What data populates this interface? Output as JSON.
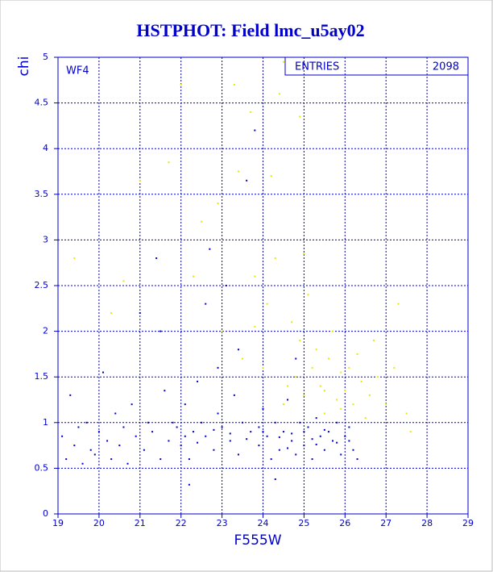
{
  "chart_data": {
    "type": "scatter",
    "title": "HSTPHOT: Field lmc_u5ay02",
    "x_label": "F555W",
    "y_label": "chi",
    "annotation": "WF4",
    "stats_label": "ENTRIES",
    "stats_value": "2098",
    "xlim": [
      19,
      29
    ],
    "ylim": [
      0,
      5
    ],
    "xticks": [
      19,
      20,
      21,
      22,
      23,
      24,
      25,
      26,
      27,
      28,
      29
    ],
    "yticks": [
      0,
      0.5,
      1,
      1.5,
      2,
      2.5,
      3,
      3.5,
      4,
      4.5,
      5
    ],
    "grid": true,
    "series": [
      {
        "color": "#0000cc",
        "x": [
          19.1,
          19.2,
          19.3,
          19.4,
          19.5,
          19.6,
          19.7,
          19.8,
          19.9,
          20.0,
          20.1,
          20.2,
          20.3,
          20.4,
          20.5,
          20.6,
          20.7,
          20.8,
          20.9,
          21.0,
          21.1,
          21.2,
          21.3,
          21.4,
          21.5,
          21.6,
          21.7,
          21.8,
          21.9,
          22.0,
          22.1,
          22.2,
          22.3,
          22.4,
          22.5,
          22.6,
          22.7,
          22.8,
          22.9,
          23.0,
          23.1,
          23.2,
          23.3,
          23.4,
          23.5,
          23.6,
          23.7,
          23.8,
          23.9,
          24.0,
          24.1,
          24.2,
          24.3,
          24.4,
          24.5,
          24.6,
          24.7,
          24.8,
          24.9,
          25.0,
          25.1,
          25.2,
          25.3,
          25.4,
          25.5,
          25.6,
          25.7,
          25.8,
          25.9,
          26.0,
          26.1,
          26.2,
          26.3,
          22.2,
          24.3,
          23.4,
          22.9,
          24.8,
          21.5,
          22.6,
          22.1,
          22.4,
          22.8,
          23.2,
          23.6,
          24.0,
          24.4,
          24.7,
          25.2,
          25.5,
          25.8,
          26.1,
          23.9,
          24.6,
          25.0,
          25.3
        ],
        "y": [
          0.85,
          0.6,
          1.3,
          0.75,
          0.95,
          0.55,
          1.0,
          0.7,
          0.65,
          0.9,
          1.55,
          0.8,
          0.6,
          1.1,
          0.75,
          0.95,
          0.55,
          1.2,
          0.85,
          2.2,
          0.7,
          1.0,
          0.9,
          2.8,
          0.6,
          1.35,
          0.8,
          1.0,
          0.95,
          0.75,
          1.2,
          0.6,
          0.9,
          1.45,
          1.0,
          0.85,
          2.9,
          0.7,
          1.1,
          0.95,
          2.5,
          0.8,
          1.3,
          0.65,
          1.0,
          3.65,
          0.9,
          4.2,
          0.75,
          1.15,
          0.85,
          0.6,
          1.0,
          0.7,
          0.9,
          1.25,
          0.8,
          0.65,
          1.0,
          0.75,
          0.95,
          0.6,
          1.05,
          0.85,
          0.7,
          0.9,
          0.8,
          1.0,
          0.65,
          0.85,
          0.95,
          0.7,
          0.6,
          0.32,
          0.38,
          1.8,
          1.6,
          1.7,
          2.0,
          2.3,
          0.85,
          0.78,
          0.92,
          0.88,
          0.82,
          0.9,
          0.84,
          0.88,
          0.82,
          0.92,
          0.78,
          0.8,
          0.95,
          0.72,
          0.9,
          0.76
        ]
      },
      {
        "color": "#e8e800",
        "x": [
          24.5,
          24.8,
          25.0,
          25.2,
          25.4,
          25.5,
          25.6,
          25.8,
          25.9,
          26.0,
          26.2,
          26.4,
          26.6,
          26.8,
          27.0,
          27.2,
          27.5,
          24.3,
          24.2,
          24.4,
          24.5,
          23.7,
          23.4,
          23.3,
          22.9,
          22.5,
          22.0,
          21.7,
          21.0,
          19.4,
          20.6,
          20.3,
          23.0,
          23.8,
          24.1,
          24.7,
          24.9,
          25.1,
          25.3,
          25.7,
          26.3,
          26.7,
          27.3,
          22.3,
          23.5,
          24.0,
          25.5,
          25.9,
          26.1,
          24.6,
          27.6,
          24.9,
          23.8,
          26.5,
          25.0
        ],
        "y": [
          1.2,
          1.5,
          1.3,
          1.6,
          1.4,
          1.1,
          1.7,
          1.25,
          1.55,
          1.35,
          1.2,
          1.45,
          1.3,
          1.5,
          1.2,
          1.6,
          1.1,
          2.8,
          3.7,
          4.6,
          4.95,
          4.4,
          3.75,
          4.7,
          3.4,
          3.2,
          4.7,
          3.85,
          3.65,
          2.8,
          2.55,
          2.2,
          2.0,
          2.6,
          2.3,
          2.1,
          1.9,
          2.4,
          1.8,
          2.0,
          1.75,
          1.9,
          2.3,
          2.6,
          1.7,
          1.6,
          1.35,
          1.15,
          1.6,
          1.4,
          0.9,
          4.35,
          2.05,
          1.05,
          2.85
        ]
      }
    ]
  }
}
